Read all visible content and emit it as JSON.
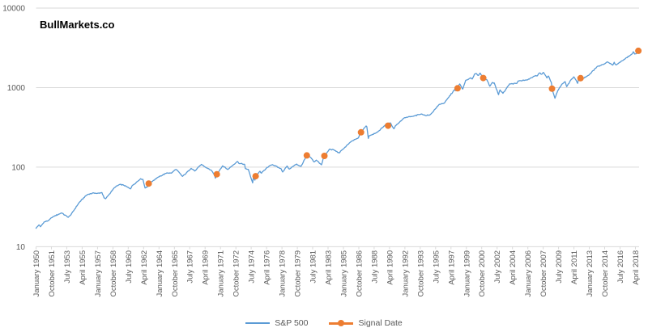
{
  "header": {
    "brand": "BullMarkets.co"
  },
  "chart_data": {
    "type": "line",
    "scale": "log",
    "title": "BullMarkets.co",
    "grid": true,
    "legend_position": "bottom",
    "colors": {
      "sp500_line": "#5B9BD5",
      "signal_marker": "#ED7D31",
      "grid": "#D9D9D9",
      "axis": "#D9D9D9",
      "tick_text": "#595959",
      "title_text": "#000000"
    },
    "y_axis": {
      "scale": "log",
      "range": [
        10,
        10000
      ],
      "ticks": [
        10,
        100,
        1000,
        10000
      ]
    },
    "x_axis": {
      "start": "1950-01",
      "end": "2018-09",
      "tick_interval_months": 21,
      "tick_labels": [
        "January 1950",
        "October 1951",
        "July 1953",
        "April 1955",
        "January 1957",
        "October 1958",
        "July 1960",
        "April 1962",
        "January 1964",
        "October 1965",
        "July 1967",
        "April 1969",
        "January 1971",
        "October 1972",
        "July 1974",
        "April 1976",
        "January 1978",
        "October 1979",
        "July 1981",
        "April 1983",
        "January 1985",
        "October 1986",
        "July 1988",
        "April 1990",
        "January 1992",
        "October 1993",
        "July 1995",
        "April 1997",
        "January 1999",
        "October 2000",
        "July 2002",
        "April 2004",
        "January 2006",
        "October 2007",
        "July 2009",
        "April 2011",
        "January 2013",
        "October 2014",
        "July 2016",
        "April 2018"
      ]
    },
    "series": [
      {
        "name": "S&P 500",
        "color": "#5B9BD5",
        "style": "line",
        "points": [
          [
            "1950-01",
            17.05
          ],
          [
            "1950-05",
            18.8
          ],
          [
            "1950-07",
            17.8
          ],
          [
            "1950-12",
            20.4
          ],
          [
            "1951-06",
            21.3
          ],
          [
            "1951-12",
            23.8
          ],
          [
            "1952-12",
            26.6
          ],
          [
            "1953-09",
            23.4
          ],
          [
            "1953-12",
            24.8
          ],
          [
            "1954-12",
            36.0
          ],
          [
            "1955-09",
            43.7
          ],
          [
            "1955-12",
            45.5
          ],
          [
            "1956-08",
            47.5
          ],
          [
            "1956-12",
            46.7
          ],
          [
            "1957-07",
            47.9
          ],
          [
            "1957-10",
            41.1
          ],
          [
            "1957-12",
            40.0
          ],
          [
            "1958-12",
            55.2
          ],
          [
            "1959-07",
            60.5
          ],
          [
            "1959-12",
            59.9
          ],
          [
            "1960-10",
            53.4
          ],
          [
            "1960-12",
            58.1
          ],
          [
            "1961-12",
            71.6
          ],
          [
            "1962-03",
            70.3
          ],
          [
            "1962-06",
            54.8
          ],
          [
            "1962-09",
            56.3
          ],
          [
            "1962-12",
            63.1
          ],
          [
            "1963-12",
            75.0
          ],
          [
            "1964-12",
            84.8
          ],
          [
            "1965-06",
            84.1
          ],
          [
            "1965-11",
            92.6
          ],
          [
            "1966-01",
            92.9
          ],
          [
            "1966-09",
            76.6
          ],
          [
            "1966-12",
            80.3
          ],
          [
            "1967-09",
            96.7
          ],
          [
            "1967-11",
            94.0
          ],
          [
            "1968-02",
            89.4
          ],
          [
            "1968-11",
            108.4
          ],
          [
            "1969-06",
            97.7
          ],
          [
            "1969-12",
            92.1
          ],
          [
            "1970-04",
            81.5
          ],
          [
            "1970-06",
            72.7
          ],
          [
            "1970-08",
            81.5
          ],
          [
            "1970-12",
            92.2
          ],
          [
            "1971-04",
            103.9
          ],
          [
            "1971-11",
            93.5
          ],
          [
            "1972-12",
            118.1
          ],
          [
            "1973-02",
            111.7
          ],
          [
            "1973-10",
            108.3
          ],
          [
            "1973-11",
            95.9
          ],
          [
            "1974-03",
            93.9
          ],
          [
            "1974-09",
            63.5
          ],
          [
            "1974-10",
            73.9
          ],
          [
            "1974-12",
            68.6
          ],
          [
            "1975-01",
            77.0
          ],
          [
            "1975-07",
            88.8
          ],
          [
            "1975-09",
            83.9
          ],
          [
            "1975-12",
            90.2
          ],
          [
            "1976-09",
            105.2
          ],
          [
            "1976-12",
            107.5
          ],
          [
            "1977-12",
            95.1
          ],
          [
            "1978-02",
            87.0
          ],
          [
            "1978-08",
            103.3
          ],
          [
            "1978-11",
            94.7
          ],
          [
            "1979-09",
            109.3
          ],
          [
            "1979-11",
            106.2
          ],
          [
            "1980-03",
            102.1
          ],
          [
            "1980-11",
            140.5
          ],
          [
            "1981-04",
            132.8
          ],
          [
            "1981-09",
            116.2
          ],
          [
            "1981-12",
            122.6
          ],
          [
            "1982-07",
            107.1
          ],
          [
            "1982-10",
            133.7
          ],
          [
            "1982-12",
            140.6
          ],
          [
            "1983-06",
            168.1
          ],
          [
            "1983-12",
            164.9
          ],
          [
            "1984-07",
            150.7
          ],
          [
            "1984-12",
            167.2
          ],
          [
            "1985-12",
            211.3
          ],
          [
            "1986-09",
            231.3
          ],
          [
            "1987-01",
            274.1
          ],
          [
            "1987-08",
            329.8
          ],
          [
            "1987-09",
            321.8
          ],
          [
            "1987-11",
            230.3
          ],
          [
            "1987-12",
            247.1
          ],
          [
            "1988-12",
            277.7
          ],
          [
            "1989-12",
            353.4
          ],
          [
            "1990-01",
            329.1
          ],
          [
            "1990-05",
            361.2
          ],
          [
            "1990-10",
            304.0
          ],
          [
            "1990-12",
            330.2
          ],
          [
            "1991-12",
            417.1
          ],
          [
            "1992-12",
            435.7
          ],
          [
            "1993-12",
            466.5
          ],
          [
            "1994-06",
            444.3
          ],
          [
            "1994-12",
            459.3
          ],
          [
            "1995-12",
            615.9
          ],
          [
            "1996-07",
            639.9
          ],
          [
            "1996-12",
            740.7
          ],
          [
            "1997-09",
            947.3
          ],
          [
            "1997-10",
            914.6
          ],
          [
            "1998-04",
            1111.8
          ],
          [
            "1998-08",
            957.3
          ],
          [
            "1998-12",
            1229.2
          ],
          [
            "1999-07",
            1328.7
          ],
          [
            "1999-09",
            1282.7
          ],
          [
            "1999-12",
            1469.3
          ],
          [
            "2000-03",
            1498.6
          ],
          [
            "2000-05",
            1420.6
          ],
          [
            "2000-08",
            1517.7
          ],
          [
            "2000-12",
            1320.3
          ],
          [
            "2001-05",
            1255.8
          ],
          [
            "2001-09",
            1040.9
          ],
          [
            "2001-12",
            1148.1
          ],
          [
            "2002-03",
            1147.4
          ],
          [
            "2002-09",
            815.3
          ],
          [
            "2002-11",
            936.3
          ],
          [
            "2003-03",
            848.2
          ],
          [
            "2003-12",
            1111.9
          ],
          [
            "2004-10",
            1130.2
          ],
          [
            "2004-12",
            1211.9
          ],
          [
            "2005-12",
            1248.3
          ],
          [
            "2006-12",
            1418.3
          ],
          [
            "2007-02",
            1406.8
          ],
          [
            "2007-05",
            1530.6
          ],
          [
            "2007-08",
            1474.0
          ],
          [
            "2007-10",
            1549.4
          ],
          [
            "2007-12",
            1468.4
          ],
          [
            "2008-03",
            1322.7
          ],
          [
            "2008-05",
            1400.4
          ],
          [
            "2008-09",
            1166.4
          ],
          [
            "2008-11",
            896.2
          ],
          [
            "2009-02",
            735.1
          ],
          [
            "2009-06",
            919.3
          ],
          [
            "2009-12",
            1115.1
          ],
          [
            "2010-04",
            1186.7
          ],
          [
            "2010-06",
            1030.7
          ],
          [
            "2010-12",
            1257.6
          ],
          [
            "2011-04",
            1363.6
          ],
          [
            "2011-09",
            1131.4
          ],
          [
            "2011-10",
            1253.3
          ],
          [
            "2012-03",
            1408.5
          ],
          [
            "2012-05",
            1310.3
          ],
          [
            "2012-12",
            1426.2
          ],
          [
            "2013-12",
            1848.4
          ],
          [
            "2014-09",
            1972.3
          ],
          [
            "2014-12",
            2058.9
          ],
          [
            "2015-02",
            2104.5
          ],
          [
            "2015-09",
            1920.0
          ],
          [
            "2015-11",
            2080.4
          ],
          [
            "2016-01",
            1940.2
          ],
          [
            "2016-02",
            1932.2
          ],
          [
            "2016-12",
            2238.8
          ],
          [
            "2017-12",
            2673.6
          ],
          [
            "2018-01",
            2823.8
          ],
          [
            "2018-03",
            2640.9
          ],
          [
            "2018-06",
            2718.4
          ],
          [
            "2018-09",
            2914.0
          ]
        ]
      },
      {
        "name": "Signal Date",
        "color": "#ED7D31",
        "style": "marker",
        "points": [
          [
            "1962-11",
            62.3
          ],
          [
            "1970-08",
            81.5
          ],
          [
            "1975-01",
            77.0
          ],
          [
            "1980-11",
            140.5
          ],
          [
            "1982-11",
            138.5
          ],
          [
            "1987-01",
            274.1
          ],
          [
            "1990-02",
            332.0
          ],
          [
            "1998-01",
            980.3
          ],
          [
            "2000-12",
            1320.3
          ],
          [
            "2008-10",
            968.8
          ],
          [
            "2012-01",
            1312.4
          ],
          [
            "2018-08",
            2901.5
          ]
        ]
      }
    ]
  }
}
